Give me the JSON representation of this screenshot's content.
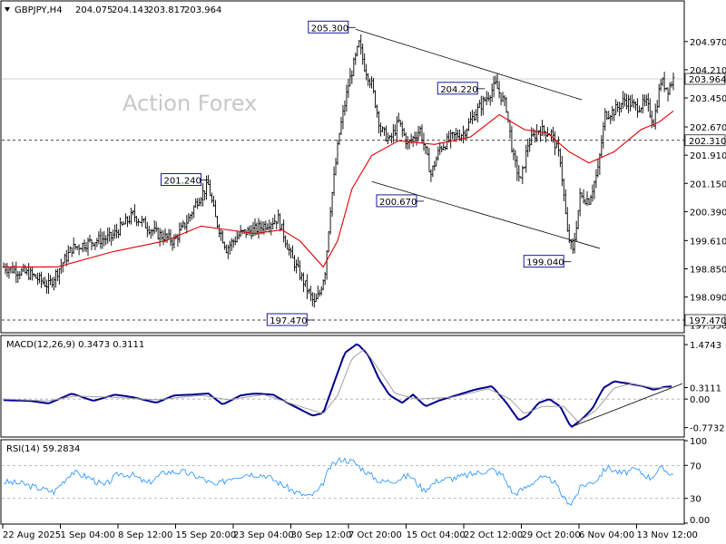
{
  "header": {
    "symbol": "GBPJPY,H4",
    "open": "204.075",
    "high": "204.143",
    "low": "203.817",
    "close": "203.964"
  },
  "watermark": "Action Forex",
  "colors": {
    "candles": "#000000",
    "ma": "#e00000",
    "macd": "#00008b",
    "signal": "#a0a0a0",
    "rsi": "#1e90ff",
    "trendline": "#000000",
    "price_box_fill": "#ffffff",
    "label_border": "#00008b"
  },
  "chart_data": [
    {
      "type": "candlestick",
      "title": "GBPJPY,H4",
      "yticks": [
        "204.970",
        "204.210",
        "203.450",
        "202.670",
        "201.910",
        "201.150",
        "200.390",
        "199.610",
        "198.850",
        "198.090",
        "197.330"
      ],
      "ylim": [
        197.25,
        205.6
      ],
      "xticks": [
        "22 Aug 2025",
        "1 Sep 04:00",
        "8 Sep 12:00",
        "15 Sep 20:00",
        "23 Sep 04:00",
        "30 Sep 12:00",
        "7 Oct 20:00",
        "15 Oct 04:00",
        "22 Oct 12:00",
        "29 Oct 20:00",
        "6 Nov 04:00",
        "13 Nov 12:00"
      ],
      "current_price": "203.964",
      "horizontal_lines": [
        "202.310",
        "197.470"
      ],
      "annotations": [
        "205.300",
        "204.220",
        "201.240",
        "200.670",
        "199.040",
        "197.470"
      ],
      "price_path": [
        {
          "t": 0,
          "p": 198.9
        },
        {
          "t": 15,
          "p": 198.7
        },
        {
          "t": 25,
          "p": 198.4
        },
        {
          "t": 38,
          "p": 199.4
        },
        {
          "t": 50,
          "p": 199.6
        },
        {
          "t": 60,
          "p": 199.7
        },
        {
          "t": 72,
          "p": 200.3
        },
        {
          "t": 85,
          "p": 199.8
        },
        {
          "t": 95,
          "p": 199.6
        },
        {
          "t": 103,
          "p": 200.2
        },
        {
          "t": 108,
          "p": 200.7
        },
        {
          "t": 114,
          "p": 201.1
        },
        {
          "t": 118,
          "p": 200.2
        },
        {
          "t": 124,
          "p": 199.4
        },
        {
          "t": 132,
          "p": 199.8
        },
        {
          "t": 140,
          "p": 199.9
        },
        {
          "t": 148,
          "p": 200.1
        },
        {
          "t": 153,
          "p": 200.2
        },
        {
          "t": 160,
          "p": 199.2
        },
        {
          "t": 168,
          "p": 198.4
        },
        {
          "t": 173,
          "p": 197.9
        },
        {
          "t": 176,
          "p": 198.2
        },
        {
          "t": 179,
          "p": 198.8
        },
        {
          "t": 182,
          "p": 200.5
        },
        {
          "t": 187,
          "p": 202.5
        },
        {
          "t": 192,
          "p": 203.8
        },
        {
          "t": 198,
          "p": 204.9
        },
        {
          "t": 201,
          "p": 204.3
        },
        {
          "t": 205,
          "p": 203.8
        },
        {
          "t": 210,
          "p": 202.6
        },
        {
          "t": 215,
          "p": 202.3
        },
        {
          "t": 220,
          "p": 202.8
        },
        {
          "t": 225,
          "p": 202.2
        },
        {
          "t": 232,
          "p": 202.6
        },
        {
          "t": 238,
          "p": 201.4
        },
        {
          "t": 243,
          "p": 202.1
        },
        {
          "t": 250,
          "p": 202.4
        },
        {
          "t": 256,
          "p": 202.5
        },
        {
          "t": 262,
          "p": 203.0
        },
        {
          "t": 268,
          "p": 203.4
        },
        {
          "t": 274,
          "p": 203.8
        },
        {
          "t": 280,
          "p": 203.2
        },
        {
          "t": 284,
          "p": 201.8
        },
        {
          "t": 288,
          "p": 201.2
        },
        {
          "t": 292,
          "p": 202.2
        },
        {
          "t": 298,
          "p": 202.6
        },
        {
          "t": 305,
          "p": 202.5
        },
        {
          "t": 310,
          "p": 201.8
        },
        {
          "t": 314,
          "p": 199.8
        },
        {
          "t": 317,
          "p": 199.3
        },
        {
          "t": 321,
          "p": 200.8
        },
        {
          "t": 326,
          "p": 200.7
        },
        {
          "t": 331,
          "p": 201.5
        },
        {
          "t": 335,
          "p": 203.0
        },
        {
          "t": 340,
          "p": 203.1
        },
        {
          "t": 346,
          "p": 203.4
        },
        {
          "t": 352,
          "p": 203.2
        },
        {
          "t": 358,
          "p": 203.3
        },
        {
          "t": 362,
          "p": 202.8
        },
        {
          "t": 366,
          "p": 203.9
        },
        {
          "t": 370,
          "p": 203.7
        },
        {
          "t": 373,
          "p": 203.964
        }
      ],
      "ma_path": [
        {
          "t": 0,
          "p": 198.9
        },
        {
          "t": 30,
          "p": 198.9
        },
        {
          "t": 60,
          "p": 199.3
        },
        {
          "t": 90,
          "p": 199.6
        },
        {
          "t": 110,
          "p": 200.0
        },
        {
          "t": 125,
          "p": 199.9
        },
        {
          "t": 140,
          "p": 199.8
        },
        {
          "t": 155,
          "p": 199.9
        },
        {
          "t": 165,
          "p": 199.6
        },
        {
          "t": 178,
          "p": 198.9
        },
        {
          "t": 186,
          "p": 199.6
        },
        {
          "t": 194,
          "p": 201.0
        },
        {
          "t": 205,
          "p": 201.9
        },
        {
          "t": 220,
          "p": 202.3
        },
        {
          "t": 240,
          "p": 202.2
        },
        {
          "t": 260,
          "p": 202.4
        },
        {
          "t": 276,
          "p": 203.0
        },
        {
          "t": 290,
          "p": 202.6
        },
        {
          "t": 303,
          "p": 202.5
        },
        {
          "t": 315,
          "p": 202.0
        },
        {
          "t": 326,
          "p": 201.7
        },
        {
          "t": 340,
          "p": 202.0
        },
        {
          "t": 355,
          "p": 202.6
        },
        {
          "t": 365,
          "p": 202.8
        },
        {
          "t": 373,
          "p": 203.1
        }
      ],
      "trendlines": [
        [
          {
            "t": 196,
            "p": 205.3
          },
          {
            "t": 322,
            "p": 203.4
          }
        ],
        [
          {
            "t": 205,
            "p": 201.2
          },
          {
            "t": 332,
            "p": 199.4
          }
        ]
      ]
    },
    {
      "type": "line",
      "title": "MACD(12,26,9) 0.3473 0.3111",
      "yticks": [
        "1.4743",
        "0.3111",
        "0.00",
        "-0.7732"
      ],
      "ylim": [
        -0.93,
        1.6
      ],
      "series": [
        {
          "name": "MACD",
          "points": [
            {
              "t": 0,
              "v": -0.03
            },
            {
              "t": 15,
              "v": -0.05
            },
            {
              "t": 25,
              "v": -0.12
            },
            {
              "t": 38,
              "v": 0.15
            },
            {
              "t": 50,
              "v": -0.05
            },
            {
              "t": 62,
              "v": 0.12
            },
            {
              "t": 72,
              "v": 0.05
            },
            {
              "t": 85,
              "v": -0.1
            },
            {
              "t": 95,
              "v": 0.1
            },
            {
              "t": 105,
              "v": 0.12
            },
            {
              "t": 114,
              "v": 0.15
            },
            {
              "t": 122,
              "v": -0.15
            },
            {
              "t": 132,
              "v": 0.1
            },
            {
              "t": 140,
              "v": 0.15
            },
            {
              "t": 150,
              "v": 0.12
            },
            {
              "t": 158,
              "v": -0.1
            },
            {
              "t": 166,
              "v": -0.3
            },
            {
              "t": 172,
              "v": -0.45
            },
            {
              "t": 178,
              "v": -0.38
            },
            {
              "t": 183,
              "v": 0.3
            },
            {
              "t": 190,
              "v": 1.25
            },
            {
              "t": 197,
              "v": 1.5
            },
            {
              "t": 203,
              "v": 1.2
            },
            {
              "t": 209,
              "v": 0.55
            },
            {
              "t": 215,
              "v": 0.1
            },
            {
              "t": 222,
              "v": -0.1
            },
            {
              "t": 228,
              "v": 0.12
            },
            {
              "t": 235,
              "v": -0.2
            },
            {
              "t": 242,
              "v": -0.05
            },
            {
              "t": 252,
              "v": 0.1
            },
            {
              "t": 262,
              "v": 0.25
            },
            {
              "t": 272,
              "v": 0.35
            },
            {
              "t": 280,
              "v": -0.1
            },
            {
              "t": 287,
              "v": -0.58
            },
            {
              "t": 292,
              "v": -0.45
            },
            {
              "t": 298,
              "v": -0.1
            },
            {
              "t": 304,
              "v": 0.0
            },
            {
              "t": 310,
              "v": -0.2
            },
            {
              "t": 316,
              "v": -0.77
            },
            {
              "t": 322,
              "v": -0.55
            },
            {
              "t": 328,
              "v": -0.25
            },
            {
              "t": 334,
              "v": 0.3
            },
            {
              "t": 340,
              "v": 0.48
            },
            {
              "t": 348,
              "v": 0.42
            },
            {
              "t": 356,
              "v": 0.35
            },
            {
              "t": 362,
              "v": 0.25
            },
            {
              "t": 368,
              "v": 0.33
            },
            {
              "t": 373,
              "v": 0.3473
            }
          ]
        },
        {
          "name": "Signal",
          "points": [
            {
              "t": 0,
              "v": 0.0
            },
            {
              "t": 25,
              "v": -0.05
            },
            {
              "t": 40,
              "v": 0.08
            },
            {
              "t": 60,
              "v": 0.05
            },
            {
              "t": 85,
              "v": -0.02
            },
            {
              "t": 110,
              "v": 0.1
            },
            {
              "t": 125,
              "v": -0.02
            },
            {
              "t": 145,
              "v": 0.12
            },
            {
              "t": 165,
              "v": -0.2
            },
            {
              "t": 178,
              "v": -0.4
            },
            {
              "t": 186,
              "v": 0.1
            },
            {
              "t": 194,
              "v": 1.1
            },
            {
              "t": 201,
              "v": 1.35
            },
            {
              "t": 209,
              "v": 0.8
            },
            {
              "t": 218,
              "v": 0.15
            },
            {
              "t": 230,
              "v": 0.0
            },
            {
              "t": 250,
              "v": 0.05
            },
            {
              "t": 270,
              "v": 0.28
            },
            {
              "t": 282,
              "v": 0.0
            },
            {
              "t": 290,
              "v": -0.4
            },
            {
              "t": 300,
              "v": -0.2
            },
            {
              "t": 312,
              "v": -0.2
            },
            {
              "t": 320,
              "v": -0.62
            },
            {
              "t": 330,
              "v": -0.3
            },
            {
              "t": 340,
              "v": 0.3
            },
            {
              "t": 350,
              "v": 0.42
            },
            {
              "t": 362,
              "v": 0.3
            },
            {
              "t": 373,
              "v": 0.3111
            }
          ]
        }
      ],
      "trendline": [
        {
          "t": 318,
          "v": -0.72
        },
        {
          "t": 373,
          "v": 0.32
        }
      ]
    },
    {
      "type": "line",
      "title": "RSI(14) 59.2834",
      "yticks": [
        "100",
        "70",
        "30",
        "0.00"
      ],
      "ylim": [
        0,
        100
      ],
      "series": [
        {
          "name": "RSI",
          "points": [
            {
              "t": 0,
              "v": 50
            },
            {
              "t": 10,
              "v": 48
            },
            {
              "t": 20,
              "v": 42
            },
            {
              "t": 28,
              "v": 38
            },
            {
              "t": 38,
              "v": 62
            },
            {
              "t": 48,
              "v": 55
            },
            {
              "t": 56,
              "v": 45
            },
            {
              "t": 64,
              "v": 60
            },
            {
              "t": 72,
              "v": 58
            },
            {
              "t": 80,
              "v": 48
            },
            {
              "t": 90,
              "v": 62
            },
            {
              "t": 100,
              "v": 62
            },
            {
              "t": 110,
              "v": 55
            },
            {
              "t": 118,
              "v": 45
            },
            {
              "t": 126,
              "v": 55
            },
            {
              "t": 136,
              "v": 60
            },
            {
              "t": 146,
              "v": 58
            },
            {
              "t": 154,
              "v": 48
            },
            {
              "t": 162,
              "v": 38
            },
            {
              "t": 170,
              "v": 32
            },
            {
              "t": 176,
              "v": 40
            },
            {
              "t": 182,
              "v": 68
            },
            {
              "t": 188,
              "v": 78
            },
            {
              "t": 195,
              "v": 74
            },
            {
              "t": 202,
              "v": 62
            },
            {
              "t": 210,
              "v": 50
            },
            {
              "t": 218,
              "v": 52
            },
            {
              "t": 226,
              "v": 58
            },
            {
              "t": 234,
              "v": 40
            },
            {
              "t": 242,
              "v": 52
            },
            {
              "t": 252,
              "v": 55
            },
            {
              "t": 262,
              "v": 60
            },
            {
              "t": 272,
              "v": 65
            },
            {
              "t": 278,
              "v": 58
            },
            {
              "t": 284,
              "v": 35
            },
            {
              "t": 290,
              "v": 42
            },
            {
              "t": 298,
              "v": 55
            },
            {
              "t": 306,
              "v": 52
            },
            {
              "t": 312,
              "v": 30
            },
            {
              "t": 316,
              "v": 24
            },
            {
              "t": 322,
              "v": 45
            },
            {
              "t": 330,
              "v": 52
            },
            {
              "t": 336,
              "v": 68
            },
            {
              "t": 344,
              "v": 60
            },
            {
              "t": 352,
              "v": 65
            },
            {
              "t": 360,
              "v": 55
            },
            {
              "t": 366,
              "v": 66
            },
            {
              "t": 373,
              "v": 59.2834
            }
          ]
        }
      ],
      "reference_lines": [
        70,
        30
      ]
    }
  ]
}
